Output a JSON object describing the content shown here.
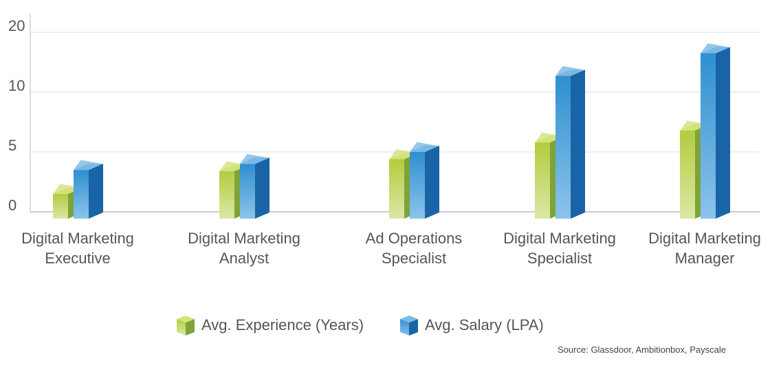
{
  "chart_data": {
    "type": "bar3d",
    "categories": [
      "Digital Marketing Executive",
      "Digital Marketing Analyst",
      "Ad Operations Specialist",
      "Digital Marketing Specialist",
      "Digital Marketing Manager"
    ],
    "series": [
      {
        "name": "Avg. Experience (Years)",
        "color": "#9dc23b",
        "values": [
          1.5,
          3.4,
          4.4,
          5.8,
          6.8
        ]
      },
      {
        "name": "Avg. Salary (LPA)",
        "color": "#2a7fc0",
        "values": [
          3.5,
          4,
          5,
          12.7,
          16.5
        ]
      }
    ],
    "ylim": [
      0,
      20
    ],
    "yticks": [
      0,
      5,
      10,
      20
    ],
    "grid": true,
    "source": "Source: Glassdoor, Ambitionbox, Payscale"
  }
}
